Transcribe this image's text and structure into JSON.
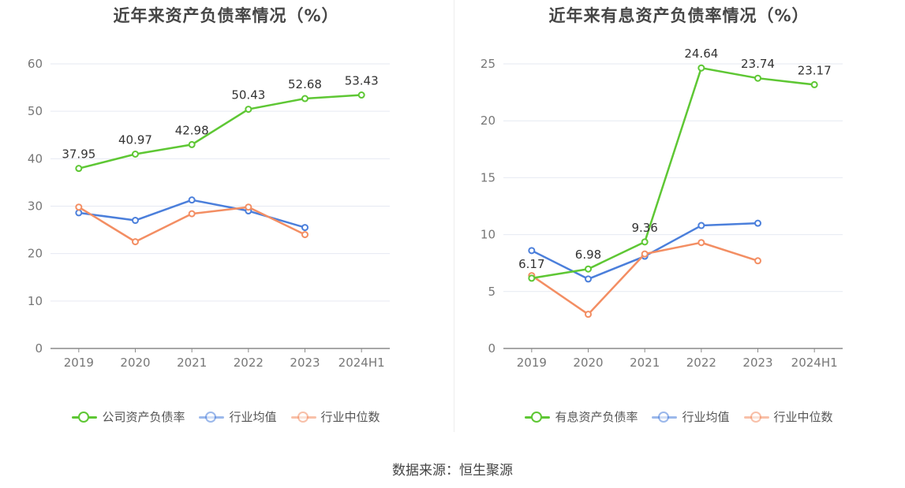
{
  "chart_data": [
    {
      "type": "line",
      "title": "近年来资产负债率情况（%）",
      "categories": [
        "2019",
        "2020",
        "2021",
        "2022",
        "2023",
        "2024H1"
      ],
      "ylim": [
        0,
        60
      ],
      "yticks": [
        0,
        10,
        20,
        30,
        40,
        50,
        60
      ],
      "grid": true,
      "legend_position": "bottom",
      "series": [
        {
          "name": "公司资产负债率",
          "color": "#5ec734",
          "labeled": true,
          "values": [
            37.95,
            40.97,
            42.98,
            50.43,
            52.68,
            53.43
          ]
        },
        {
          "name": "行业均值",
          "color": "#4b7fdb",
          "labeled": false,
          "values": [
            28.6,
            27.0,
            31.3,
            29.0,
            25.5,
            null
          ]
        },
        {
          "name": "行业中位数",
          "color": "#f38e63",
          "labeled": false,
          "values": [
            29.8,
            22.5,
            28.4,
            29.8,
            24.0,
            null
          ]
        }
      ]
    },
    {
      "type": "line",
      "title": "近年来有息资产负债率情况（%）",
      "categories": [
        "2019",
        "2020",
        "2021",
        "2022",
        "2023",
        "2024H1"
      ],
      "ylim": [
        0,
        25
      ],
      "yticks": [
        0,
        5,
        10,
        15,
        20,
        25
      ],
      "grid": true,
      "legend_position": "bottom",
      "series": [
        {
          "name": "有息资产负债率",
          "color": "#5ec734",
          "labeled": true,
          "values": [
            6.17,
            6.98,
            9.36,
            24.64,
            23.74,
            23.17
          ]
        },
        {
          "name": "行业均值",
          "color": "#4b7fdb",
          "labeled": false,
          "values": [
            8.6,
            6.1,
            8.1,
            10.8,
            11.0,
            null
          ]
        },
        {
          "name": "行业中位数",
          "color": "#f38e63",
          "labeled": false,
          "values": [
            6.4,
            3.0,
            8.3,
            9.3,
            7.7,
            null
          ]
        }
      ]
    }
  ],
  "source": "数据来源：恒生聚源"
}
